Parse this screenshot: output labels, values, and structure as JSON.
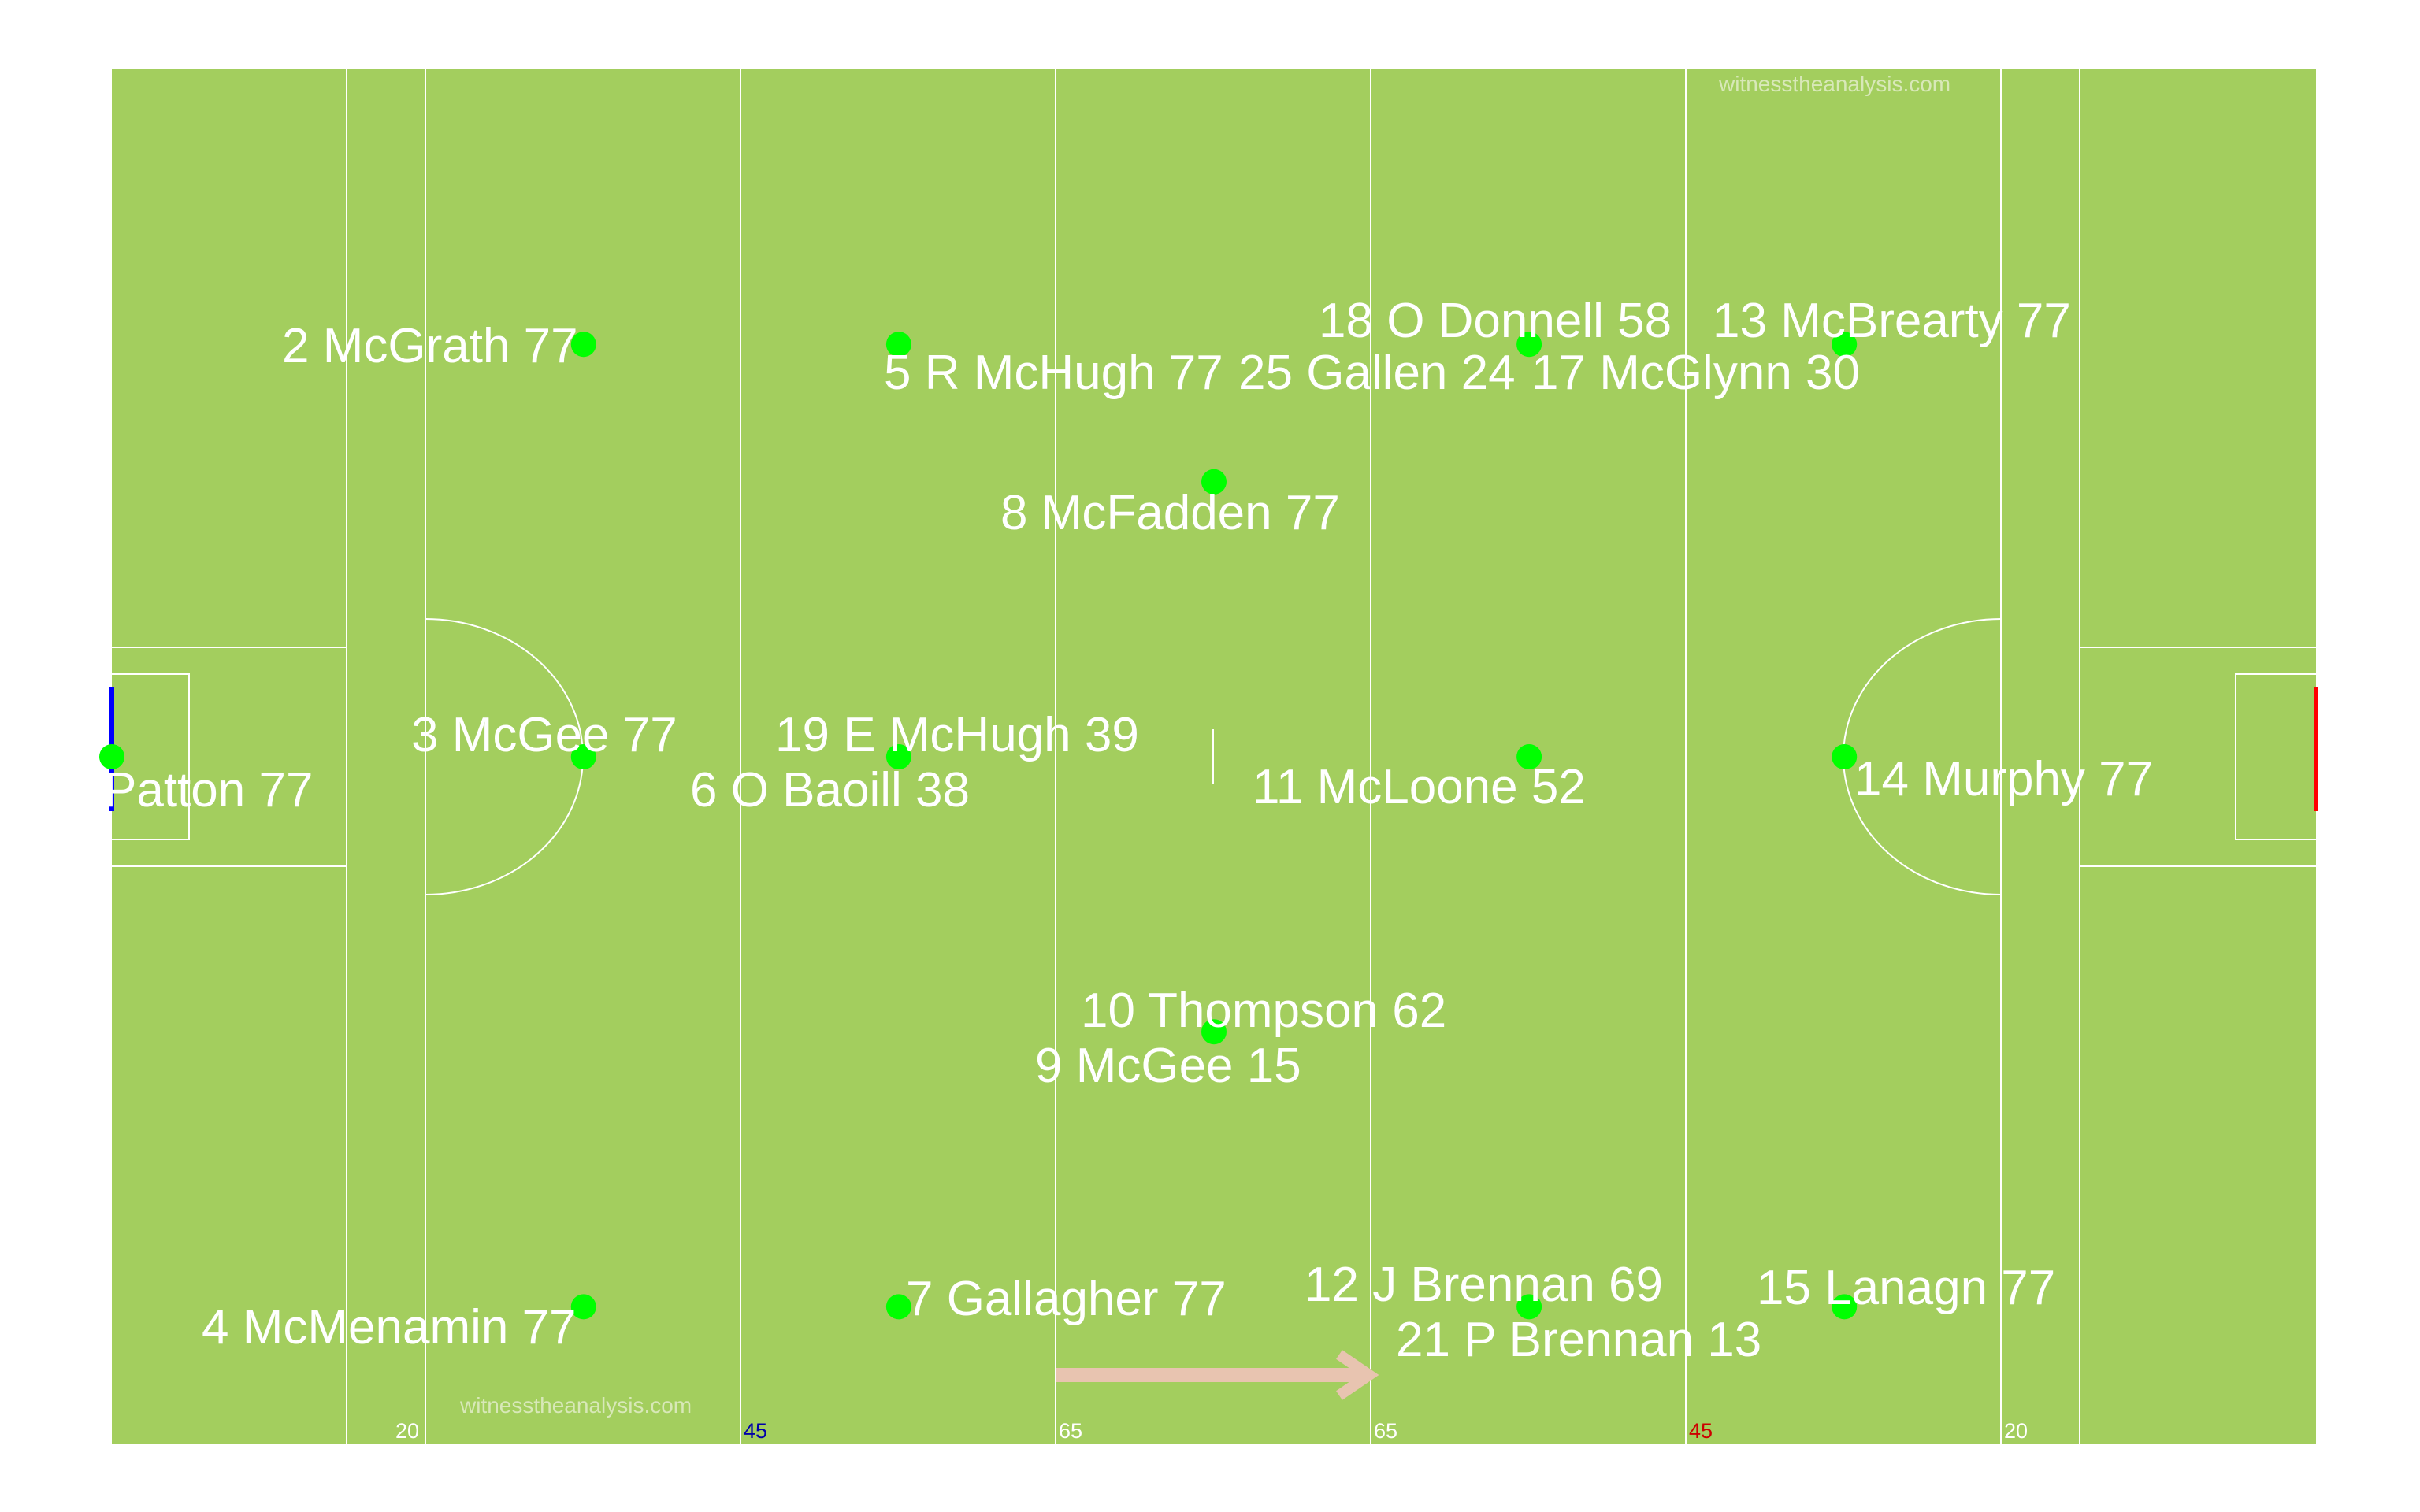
{
  "watermark_top": "witnesstheanalysis.com",
  "watermark_bottom": "witnesstheanalysis.com",
  "colors": {
    "grass": "#a3ce5e",
    "lines": "#ffffff",
    "player_dot": "#00ff00",
    "left_goal": "#0000ff",
    "right_goal": "#ff0000",
    "arrow": "#e8c4b0",
    "yard_label_default": "#ffffff",
    "yard_label_blue": "#0000aa",
    "yard_label_red": "#cc0000"
  },
  "yard_labels": [
    {
      "text": "20",
      "color": "#ffffff"
    },
    {
      "text": "45",
      "color": "#0000aa"
    },
    {
      "text": "65",
      "color": "#ffffff"
    },
    {
      "text": "65",
      "color": "#ffffff"
    },
    {
      "text": "45",
      "color": "#cc0000"
    },
    {
      "text": "20",
      "color": "#ffffff"
    }
  ],
  "players": [
    {
      "label": "Patton 77",
      "x": 0,
      "y": 50
    },
    {
      "label": "2 McGrath 77",
      "x": 21.4,
      "y": 20
    },
    {
      "label": "3 McGee 77",
      "x": 21.4,
      "y": 50
    },
    {
      "label": "4 McMenamin 77",
      "x": 21.4,
      "y": 90
    },
    {
      "label": "5 R McHugh 77",
      "x": 35.7,
      "y": 20
    },
    {
      "label": "6 O Baoill  38",
      "x": 35.7,
      "y": 50
    },
    {
      "label": "19 E McHugh 39",
      "x": 35.7,
      "y": 50
    },
    {
      "label": "7 Gallagher 77",
      "x": 35.7,
      "y": 90
    },
    {
      "label": "8 McFadden 77",
      "x": 50,
      "y": 30
    },
    {
      "label": "10 Thompson 62",
      "x": 50,
      "y": 70
    },
    {
      "label": "9 McGee 15",
      "x": 50,
      "y": 70
    },
    {
      "label": "18 O Donnell 58",
      "x": 64.3,
      "y": 20
    },
    {
      "label": "25 Gallen 24",
      "x": 64.3,
      "y": 20
    },
    {
      "label": "11 McLoone 52",
      "x": 64.3,
      "y": 50
    },
    {
      "label": "12 J Brennan 69",
      "x": 64.3,
      "y": 90
    },
    {
      "label": "21 P Brennan 13",
      "x": 64.3,
      "y": 90
    },
    {
      "label": "13 McBrearty 77",
      "x": 78.6,
      "y": 20
    },
    {
      "label": "17 McGlynn 30",
      "x": 78.6,
      "y": 20
    },
    {
      "label": "14 Murphy 77",
      "x": 78.6,
      "y": 50
    },
    {
      "label": "15 Lanagn 77",
      "x": 78.6,
      "y": 90
    }
  ]
}
